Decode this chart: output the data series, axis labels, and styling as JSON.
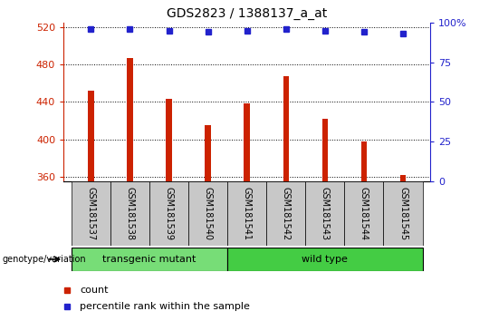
{
  "title": "GDS2823 / 1388137_a_at",
  "samples": [
    "GSM181537",
    "GSM181538",
    "GSM181539",
    "GSM181540",
    "GSM181541",
    "GSM181542",
    "GSM181543",
    "GSM181544",
    "GSM181545"
  ],
  "counts": [
    452,
    487,
    443,
    415,
    438,
    468,
    422,
    398,
    362
  ],
  "percentile_ranks": [
    96,
    96,
    95,
    94,
    95,
    96,
    95,
    94,
    93
  ],
  "ylim_left": [
    355,
    525
  ],
  "ylim_right": [
    0,
    100
  ],
  "yticks_left": [
    360,
    400,
    440,
    480,
    520
  ],
  "yticks_right": [
    0,
    25,
    50,
    75,
    100
  ],
  "groups": [
    {
      "label": "transgenic mutant",
      "indices": [
        0,
        1,
        2,
        3
      ],
      "color": "#77dd77"
    },
    {
      "label": "wild type",
      "indices": [
        4,
        5,
        6,
        7,
        8
      ],
      "color": "#44cc44"
    }
  ],
  "bar_color": "#cc2200",
  "dot_color": "#2222cc",
  "grid_color": "#000000",
  "left_axis_color": "#cc2200",
  "right_axis_color": "#2222cc",
  "tick_area_color": "#c8c8c8",
  "group_label": "genotype/variation",
  "bar_width": 0.15,
  "dot_size": 5
}
